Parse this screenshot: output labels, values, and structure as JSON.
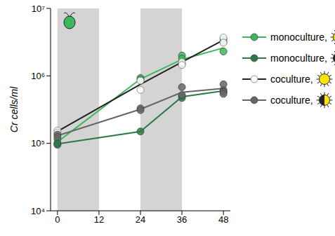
{
  "chart_data": {
    "type": "line",
    "log": "y",
    "y_label": "Cr cells/ml",
    "xlim": [
      -2,
      50
    ],
    "xticks": [
      0,
      12,
      24,
      36,
      48
    ],
    "ylim": [
      10000,
      10000000
    ],
    "yticks": [
      {
        "value": 10000,
        "label": "10⁴"
      },
      {
        "value": 100000,
        "label": "10⁵"
      },
      {
        "value": 1000000,
        "label": "10⁶"
      },
      {
        "value": 10000000,
        "label": "10⁷"
      }
    ],
    "dark_periods": [
      [
        0,
        12
      ],
      [
        24,
        36
      ]
    ],
    "series": [
      {
        "name": "monoculture,",
        "color": "#3cb85c",
        "marker": "circle",
        "x": [
          0,
          24,
          36,
          48
        ],
        "values": [
          105000,
          900000,
          1750000,
          2600000
        ],
        "replicates": {
          "x": [
            0,
            0,
            24,
            24,
            36,
            36,
            36,
            48,
            48,
            48
          ],
          "values": [
            115000,
            100000,
            930000,
            880000,
            2000000,
            1800000,
            1500000,
            3500000,
            2300000,
            3200000
          ]
        }
      },
      {
        "name": "monoculture,",
        "color": "#2a7a45",
        "marker": "circle",
        "x": [
          0,
          24,
          36,
          48
        ],
        "values": [
          98000,
          150000,
          490000,
          600000
        ],
        "replicates": {
          "x": [
            0,
            0,
            24,
            36,
            36,
            48,
            48
          ],
          "values": [
            95000,
            100000,
            150000,
            500000,
            470000,
            620000,
            580000
          ]
        }
      },
      {
        "name": "coculture,",
        "color": "#222222",
        "marker": "open_circle",
        "x": [
          0,
          24,
          36,
          48
        ],
        "values": [
          150000,
          750000,
          1600000,
          3400000
        ],
        "replicates": {
          "x": [
            0,
            0,
            24,
            24,
            36,
            36,
            48,
            48
          ],
          "values": [
            155000,
            145000,
            850000,
            620000,
            1600000,
            1450000,
            3700000,
            3100000
          ]
        }
      },
      {
        "name": "coculture,",
        "color": "#666666",
        "marker": "circle",
        "x": [
          0,
          24,
          36,
          48
        ],
        "values": [
          130000,
          320000,
          570000,
          650000
        ],
        "replicates": {
          "x": [
            0,
            0,
            24,
            24,
            36,
            36,
            48,
            48,
            48
          ],
          "values": [
            135000,
            125000,
            330000,
            310000,
            680000,
            520000,
            750000,
            580000,
            540000
          ]
        }
      }
    ]
  }
}
